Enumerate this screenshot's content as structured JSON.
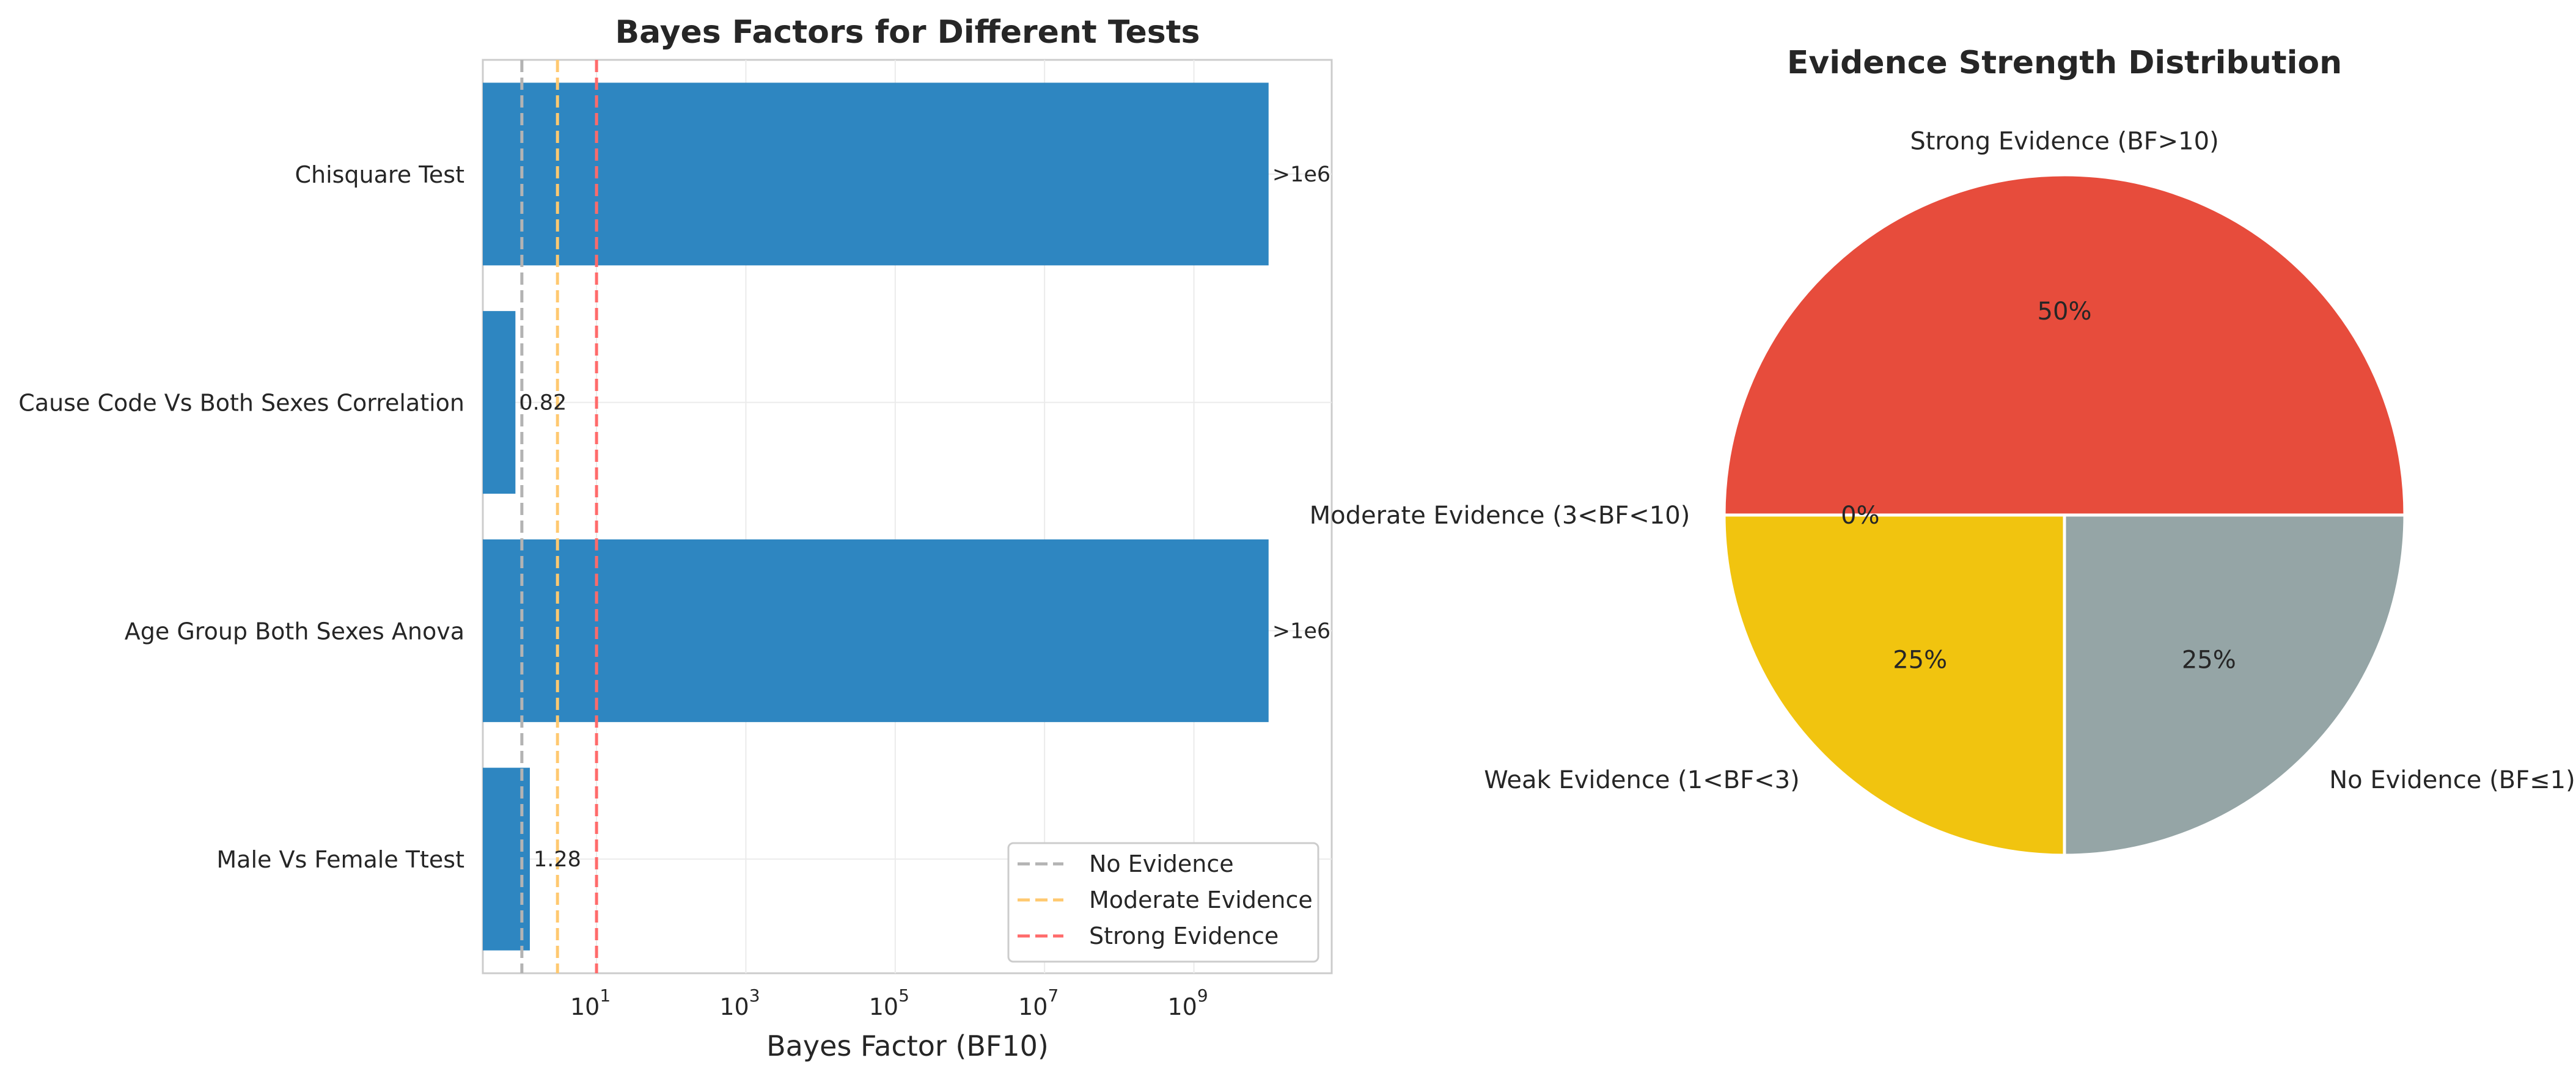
{
  "chart_data": [
    {
      "type": "bar",
      "orientation": "horizontal",
      "title": "Bayes Factors for Different Tests",
      "xlabel": "Bayes Factor (BF10)",
      "ylabel": "",
      "xscale": "log",
      "xlim": [
        0.3,
        70000000000
      ],
      "xtick_values": [
        10,
        1000,
        100000,
        10000000,
        1000000000
      ],
      "xtick_labels": [
        {
          "base": "10",
          "exp": "1"
        },
        {
          "base": "10",
          "exp": "3"
        },
        {
          "base": "10",
          "exp": "5"
        },
        {
          "base": "10",
          "exp": "7"
        },
        {
          "base": "10",
          "exp": "9"
        }
      ],
      "categories": [
        "Chisquare Test",
        "Cause Code Vs Both Sexes Correlation",
        "Age Group Both Sexes Anova",
        "Male Vs Female Ttest"
      ],
      "values": [
        10000000000,
        0.82,
        10000000000,
        1.28
      ],
      "data_labels": [
        ">1e6",
        "0.82",
        ">1e6",
        "1.28"
      ],
      "bar_color": "#2e86c1",
      "grid": true,
      "reference_lines": [
        {
          "name": "No Evidence",
          "x": 1,
          "color": "#b3b3b3"
        },
        {
          "name": "Moderate Evidence",
          "x": 3,
          "color": "#ffc970"
        },
        {
          "name": "Strong Evidence",
          "x": 10,
          "color": "#ff6b6b"
        }
      ],
      "legend_position": "lower-right"
    },
    {
      "type": "pie",
      "title": "Evidence Strength Distribution",
      "slices": [
        {
          "label": "Strong Evidence (BF>10)",
          "value": 50,
          "pct_label": "50%",
          "color": "#e74c3c"
        },
        {
          "label": "Moderate Evidence (3<BF<10)",
          "value": 0,
          "pct_label": "0%",
          "color": "#f39c12"
        },
        {
          "label": "Weak Evidence (1<BF<3)",
          "value": 25,
          "pct_label": "25%",
          "color": "#f1c40f"
        },
        {
          "label": "No Evidence (BF≤1)",
          "value": 25,
          "pct_label": "25%",
          "color": "#95a5a6"
        }
      ]
    }
  ]
}
